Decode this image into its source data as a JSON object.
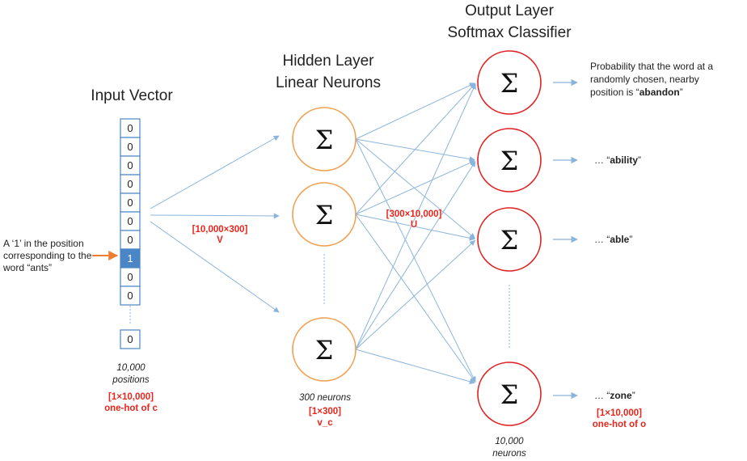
{
  "titles": {
    "input": "Input Vector",
    "hidden": [
      "Hidden Layer",
      "Linear Neurons"
    ],
    "output": [
      "Output Layer",
      "Softmax Classifier"
    ]
  },
  "input_vector": {
    "cells": [
      "0",
      "0",
      "0",
      "0",
      "0",
      "0",
      "0",
      "1",
      "0",
      "0"
    ],
    "hot_index": 7,
    "last_cell": "0",
    "size_label": [
      "10,000",
      "positions"
    ],
    "shape_label": [
      "[1×10,000]",
      "one-hot of c"
    ]
  },
  "input_note": [
    "A ‘1’ in the position",
    "corresponding to the",
    "word “ants”"
  ],
  "weights": {
    "V": [
      "[10,000×300]",
      "V"
    ],
    "U": [
      "[300×10,000]",
      "U"
    ]
  },
  "hidden": {
    "neuron_symbol": "Σ",
    "count_label": "300 neurons",
    "shape_label": [
      "[1×300]",
      "v_c"
    ]
  },
  "output": {
    "neuron_symbol": "Σ",
    "count_label": [
      "10,000",
      "neurons"
    ],
    "shape_label": [
      "[1×10,000]",
      "one-hot of o"
    ],
    "probability_label": {
      "line1": "Probability that the word at a",
      "line2": "randomly chosen, nearby",
      "line3_prefix": "position is “",
      "word": "abandon",
      "line3_suffix": "”"
    },
    "words": [
      {
        "prefix": "… “",
        "word": "ability",
        "suffix": "”"
      },
      {
        "prefix": "… “",
        "word": "able",
        "suffix": "”"
      },
      {
        "prefix": "… “",
        "word": "zone",
        "suffix": "”"
      }
    ]
  },
  "colors": {
    "arrow": "#8bb5dc",
    "hidden_ring": "#f0a050",
    "output_ring": "#e02020",
    "hot_cell": "#4a86c5",
    "annotation": "#e8261c",
    "pointer": "#ed7d31"
  }
}
